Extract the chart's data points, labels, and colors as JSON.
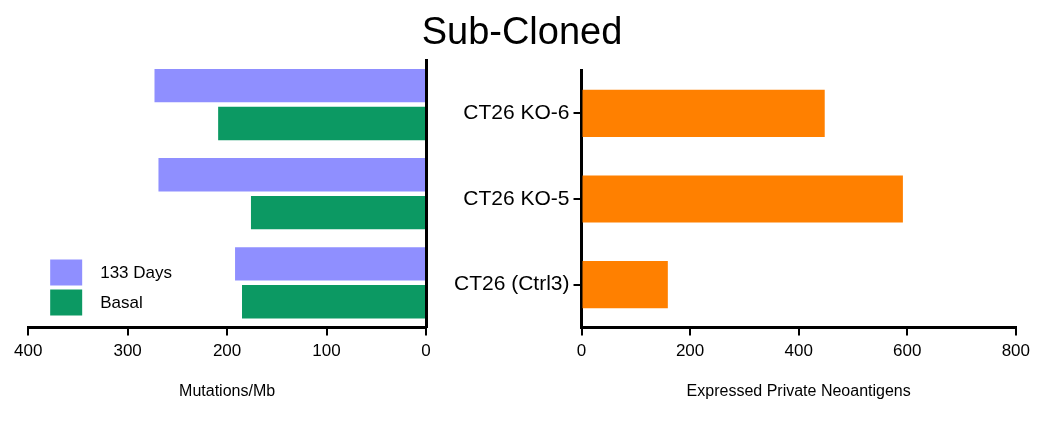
{
  "chart_data": [
    {
      "type": "bar",
      "title": "Sub-Cloned",
      "orientation": "horizontal",
      "categories": [
        null,
        null,
        null
      ],
      "series": [
        {
          "name": "133 Days",
          "color": "#8f8fff",
          "values": [
            273,
            269,
            192
          ]
        },
        {
          "name": "Basal",
          "color": "#0c9963",
          "values": [
            209,
            176,
            185
          ]
        }
      ],
      "xlabel": "Mutations/Mb",
      "xlim": [
        400,
        0
      ],
      "xticks": [
        400,
        300,
        200,
        100,
        0
      ],
      "grid": false,
      "legend": "bottom left",
      "tick_labels": "x"
    },
    {
      "type": "bar",
      "orientation": "horizontal",
      "categories": [
        "CT26 KO-6",
        "CT26 KO-5",
        "CT26 (Ctrl3)"
      ],
      "values": [
        448,
        592,
        159
      ],
      "color": "#ff8000",
      "xlabel": "Expressed Private Neoantigens",
      "xlim": [
        0,
        800
      ],
      "xticks": [
        0,
        200,
        400,
        600,
        800
      ],
      "grid": false
    }
  ]
}
